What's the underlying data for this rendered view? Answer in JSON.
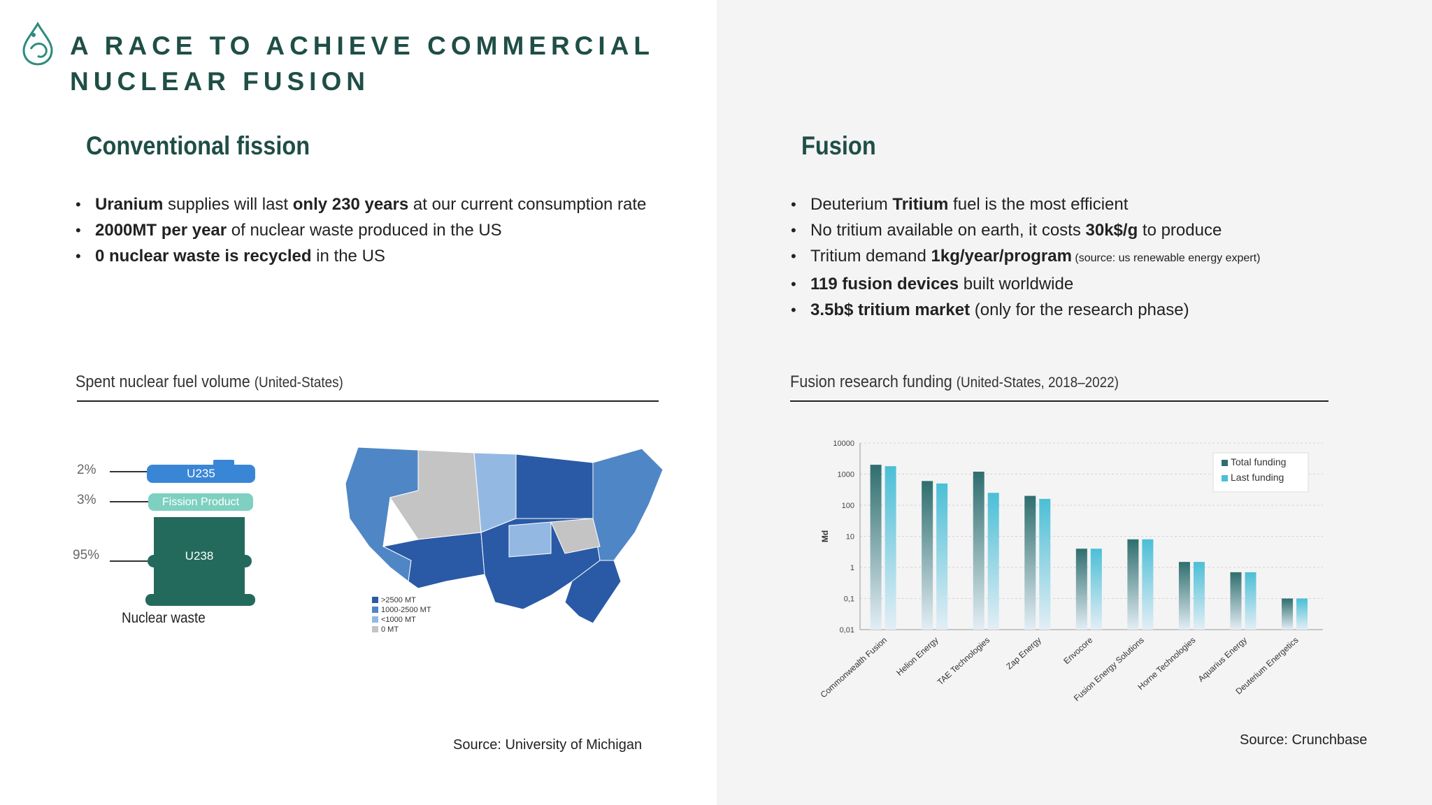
{
  "header": {
    "title_line1": "A RACE TO ACHIEVE COMMERCIAL",
    "title_line2": "NUCLEAR FUSION",
    "logo_icon": "drop-logo-icon"
  },
  "left": {
    "title": "Conventional fission",
    "bullets": [
      {
        "b1": "Uranium",
        "t1": " supplies will last ",
        "b2": "only 230 years",
        "t2": " at our current consumption rate"
      },
      {
        "b1": "2000MT per year",
        "t1": " of nuclear waste produced in the US"
      },
      {
        "b1": "0 nuclear waste is recycled",
        "t1": " in the US"
      }
    ],
    "subtitle": "Spent nuclear fuel volume",
    "subtitle_note": "(United-States)",
    "waste": {
      "pct_u235": "2%",
      "pct_fission": "3%",
      "pct_u238": "95%",
      "u235": "U235",
      "fission": "Fission Product",
      "u238": "U238",
      "caption": "Nuclear waste"
    },
    "map": {
      "legend": [
        ">2500 MT",
        "1000-2500 MT",
        "<1000 MT",
        "0 MT"
      ],
      "colors": [
        "#2a5aa5",
        "#4f86c6",
        "#93b9e3",
        "#c4c4c4"
      ]
    },
    "source": "Source: University of Michigan"
  },
  "right": {
    "title": "Fusion",
    "bullets": [
      {
        "t1": "Deuterium ",
        "b1": "Tritium",
        "t2": " fuel is the most efficient"
      },
      {
        "t1": "No tritium available on earth, it costs ",
        "b1": "30k$/g",
        "t2": " to produce"
      },
      {
        "t1": "Tritium demand ",
        "b1": "1kg/year/program",
        "s1": " (source: us renewable energy expert)"
      },
      {
        "b1": "119 fusion devices",
        "t1": " built worldwide"
      },
      {
        "b1": "3.5b$ tritium market",
        "t1": " (only for the research phase)"
      }
    ],
    "subtitle": "Fusion research funding",
    "subtitle_note": "(United-States, 2018–2022)",
    "source": "Source: Crunchbase"
  },
  "chart_data": {
    "type": "bar",
    "scale": "log",
    "ylabel": "Md",
    "ylim": [
      0.01,
      10000
    ],
    "yticks": [
      "10000",
      "1000",
      "100",
      "10",
      "1",
      "0,1",
      "0,01"
    ],
    "categories": [
      "Commonwealth Fusion",
      "Helion Energy",
      "TAE Technologies",
      "Zap Energy",
      "Envocore",
      "Fusion Energy Solutions",
      "Horne Technologies",
      "Aquarius Energy",
      "Deuterium Energetics"
    ],
    "series": [
      {
        "name": "Total funding",
        "values": [
          2000,
          600,
          1200,
          200,
          4,
          8,
          1.5,
          0.7,
          0.1
        ],
        "color": "#2f6e6e"
      },
      {
        "name": "Last funding",
        "values": [
          1800,
          500,
          250,
          160,
          4,
          8,
          1.5,
          0.7,
          0.1
        ],
        "color": "#4bbfd6"
      }
    ],
    "grid": true,
    "legend": "top-right"
  }
}
